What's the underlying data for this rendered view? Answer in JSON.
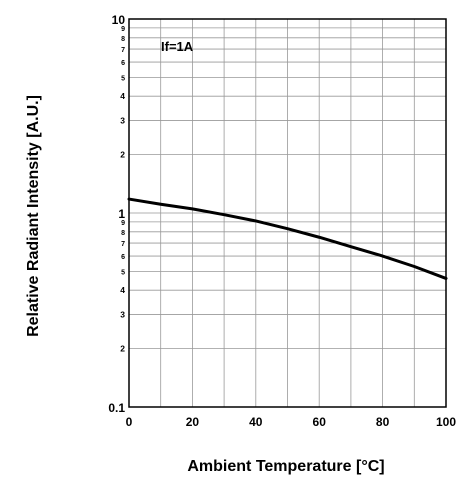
{
  "chart_data": {
    "type": "line",
    "xlabel": "Ambient Temperature [°C]",
    "ylabel": "Relative Radiant Intensity [A.U.]",
    "annotation": "If=1A",
    "xlim": [
      0,
      100
    ],
    "ylim": [
      0.1,
      10
    ],
    "y_scale": "log",
    "grid": true,
    "x_ticks": [
      "0",
      "20",
      "40",
      "60",
      "80",
      "100"
    ],
    "y_tick_labels_major": [
      "0.1",
      "1",
      "10"
    ],
    "y_tick_labels_minor": [
      "2",
      "3",
      "4",
      "5",
      "6",
      "7",
      "8",
      "9"
    ],
    "series": [
      {
        "x": [
          0,
          10,
          20,
          30,
          40,
          50,
          60,
          70,
          80,
          90,
          100
        ],
        "y": [
          1.18,
          1.11,
          1.05,
          0.98,
          0.91,
          0.83,
          0.75,
          0.67,
          0.6,
          0.53,
          0.46
        ]
      }
    ],
    "colors": {
      "line": "#000000",
      "grid": "#999999",
      "frame": "#000000"
    }
  }
}
